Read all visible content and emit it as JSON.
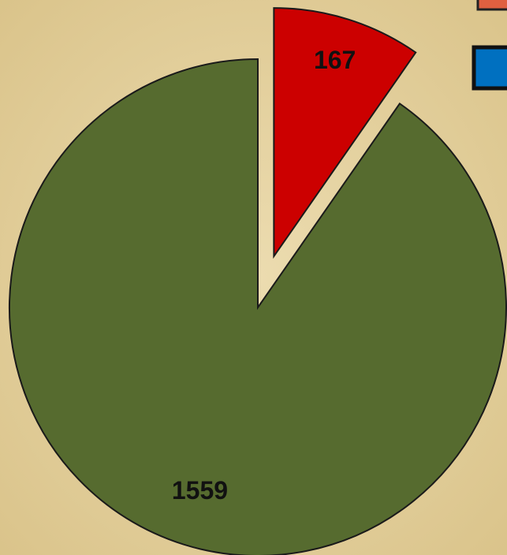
{
  "chart_data": {
    "type": "pie",
    "categories": [
      null,
      null
    ],
    "values": [
      167,
      1559
    ],
    "colors": [
      "#cc0000",
      "#566b2f"
    ]
  }
}
